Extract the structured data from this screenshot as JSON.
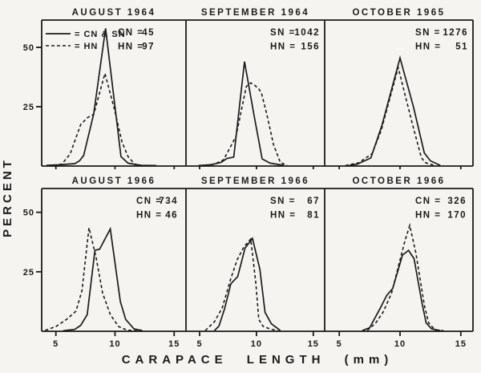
{
  "figure": {
    "background": "#f5f4f1",
    "ink": "#1b1b1b"
  },
  "chart_data": {
    "type": "line",
    "title": "",
    "xlabel": "CARAPACE LENGTH (mm)",
    "ylabel": "PERCENT",
    "xticks": [
      5,
      10,
      15
    ],
    "yticks": [
      25,
      50
    ],
    "xlim": [
      3.8,
      16
    ],
    "ylim": [
      0,
      61.5
    ],
    "grid": false,
    "legend_position": "top-left of first panel",
    "legend": [
      {
        "style": "solid",
        "label": "= CN & SN"
      },
      {
        "style": "dashed",
        "label": "= HN"
      }
    ],
    "panels": [
      {
        "title": "AUGUST 1964",
        "stats": [
          {
            "label": "CN",
            "value": "45"
          },
          {
            "label": "HN",
            "value": "97"
          }
        ],
        "series": [
          {
            "name": "CN",
            "style": "solid",
            "points": [
              [
                4.2,
                0.3
              ],
              [
                5.2,
                0.5
              ],
              [
                6.6,
                1.0
              ],
              [
                7.0,
                2.2
              ],
              [
                7.35,
                4.5
              ],
              [
                8.2,
                22
              ],
              [
                9.2,
                58
              ],
              [
                10.5,
                4
              ],
              [
                11.1,
                1.2
              ],
              [
                12.2,
                0.3
              ],
              [
                13.5,
                0.2
              ]
            ]
          },
          {
            "name": "HN",
            "style": "dashed",
            "points": [
              [
                4.8,
                0.2
              ],
              [
                5.5,
                0.8
              ],
              [
                6.2,
                5
              ],
              [
                7.1,
                17.5
              ],
              [
                7.65,
                20.3
              ],
              [
                8.2,
                21.8
              ],
              [
                9.15,
                39
              ],
              [
                9.95,
                24
              ],
              [
                10.6,
                10
              ],
              [
                11.1,
                4
              ],
              [
                11.7,
                0.6
              ],
              [
                12.4,
                0.2
              ]
            ]
          }
        ]
      },
      {
        "title": "SEPTEMBER 1964",
        "stats": [
          {
            "label": "SN",
            "value": "1042"
          },
          {
            "label": "HN",
            "value": "156"
          }
        ],
        "series": [
          {
            "name": "SN",
            "style": "solid",
            "points": [
              [
                4.9,
                0.2
              ],
              [
                6.1,
                0.6
              ],
              [
                6.9,
                1.6
              ],
              [
                7.4,
                3.2
              ],
              [
                8.0,
                3.8
              ],
              [
                8.95,
                44
              ],
              [
                9.8,
                21
              ],
              [
                10.5,
                3
              ],
              [
                11.2,
                1.2
              ],
              [
                12.4,
                0.3
              ]
            ]
          },
          {
            "name": "HN",
            "style": "dashed",
            "points": [
              [
                5.5,
                0.2
              ],
              [
                6.4,
                1.0
              ],
              [
                7.1,
                2.6
              ],
              [
                8.2,
                12.5
              ],
              [
                9.1,
                33.5
              ],
              [
                9.5,
                35
              ],
              [
                9.85,
                34
              ],
              [
                10.2,
                32.5
              ],
              [
                10.45,
                30.5
              ],
              [
                10.9,
                22
              ],
              [
                11.5,
                9
              ],
              [
                12.1,
                1.5
              ],
              [
                12.7,
                0.3
              ]
            ]
          }
        ]
      },
      {
        "title": "OCTOBER 1965",
        "stats": [
          {
            "label": "SN",
            "value": "1276"
          },
          {
            "label": "HN",
            "value": "51"
          }
        ],
        "series": [
          {
            "name": "SN",
            "style": "solid",
            "points": [
              [
                5.8,
                0.2
              ],
              [
                6.5,
                0.8
              ],
              [
                7.6,
                3.4
              ],
              [
                8.5,
                17
              ],
              [
                10.0,
                45.5
              ],
              [
                11.1,
                25
              ],
              [
                12.0,
                5.5
              ],
              [
                12.5,
                2.2
              ],
              [
                13.3,
                0.3
              ]
            ]
          },
          {
            "name": "HN",
            "style": "dashed",
            "points": [
              [
                5.5,
                0.2
              ],
              [
                6.6,
                1.4
              ],
              [
                7.7,
                5.2
              ],
              [
                8.45,
                15
              ],
              [
                9.85,
                41.5
              ],
              [
                11.0,
                18
              ],
              [
                11.75,
                3.5
              ],
              [
                12.1,
                1.4
              ],
              [
                12.8,
                0.3
              ]
            ]
          }
        ]
      },
      {
        "title": "AUGUST 1966",
        "stats": [
          {
            "label": "CN",
            "value": "734"
          },
          {
            "label": "HN",
            "value": "46"
          }
        ],
        "series": [
          {
            "name": "CN",
            "style": "solid",
            "points": [
              [
                5.6,
                0.2
              ],
              [
                6.6,
                0.8
              ],
              [
                7.1,
                2.5
              ],
              [
                7.65,
                7
              ],
              [
                8.3,
                34
              ],
              [
                8.7,
                34.5
              ],
              [
                9.6,
                43
              ],
              [
                10.45,
                12.5
              ],
              [
                10.9,
                5
              ],
              [
                11.6,
                1
              ],
              [
                12.3,
                0.3
              ]
            ]
          },
          {
            "name": "HN",
            "style": "dashed",
            "points": [
              [
                4.1,
                0.4
              ],
              [
                5.0,
                2
              ],
              [
                5.9,
                5
              ],
              [
                6.7,
                8.5
              ],
              [
                7.2,
                17
              ],
              [
                7.8,
                43.5
              ],
              [
                8.4,
                31
              ],
              [
                8.95,
                16
              ],
              [
                9.6,
                7
              ],
              [
                10.3,
                2
              ],
              [
                11.0,
                0.5
              ],
              [
                11.9,
                0.2
              ]
            ]
          }
        ]
      },
      {
        "title": "SEPTEMBER 1966",
        "stats": [
          {
            "label": "SN",
            "value": "67"
          },
          {
            "label": "HN",
            "value": "81"
          }
        ],
        "series": [
          {
            "name": "SN",
            "style": "solid",
            "points": [
              [
                6.3,
                0.3
              ],
              [
                6.7,
                2.2
              ],
              [
                7.2,
                9.5
              ],
              [
                7.75,
                20
              ],
              [
                8.35,
                23
              ],
              [
                9.0,
                35
              ],
              [
                9.65,
                39
              ],
              [
                10.3,
                26
              ],
              [
                10.75,
                8
              ],
              [
                11.3,
                3.2
              ],
              [
                12.1,
                0.3
              ]
            ]
          },
          {
            "name": "HN",
            "style": "dashed",
            "points": [
              [
                5.5,
                0.3
              ],
              [
                6.3,
                4
              ],
              [
                7.0,
                10
              ],
              [
                7.7,
                21.5
              ],
              [
                8.3,
                30
              ],
              [
                8.9,
                35.5
              ],
              [
                9.5,
                38.8
              ],
              [
                9.95,
                20
              ],
              [
                10.2,
                5
              ],
              [
                10.6,
                2
              ],
              [
                11.2,
                1
              ],
              [
                11.9,
                0.2
              ]
            ]
          }
        ]
      },
      {
        "title": "OCTOBER 1966",
        "stats": [
          {
            "label": "CN",
            "value": "326"
          },
          {
            "label": "HN",
            "value": "170"
          }
        ],
        "series": [
          {
            "name": "CN",
            "style": "solid",
            "points": [
              [
                6.9,
                0.3
              ],
              [
                7.5,
                1.5
              ],
              [
                8.4,
                10
              ],
              [
                8.9,
                15
              ],
              [
                9.4,
                18
              ],
              [
                10.2,
                32
              ],
              [
                10.7,
                34
              ],
              [
                11.15,
                30.5
              ],
              [
                11.8,
                12
              ],
              [
                12.15,
                3.5
              ],
              [
                12.6,
                1
              ],
              [
                13.3,
                0.3
              ]
            ]
          },
          {
            "name": "HN",
            "style": "dashed",
            "points": [
              [
                7.3,
                0.3
              ],
              [
                8.0,
                3.5
              ],
              [
                8.6,
                8
              ],
              [
                9.3,
                16
              ],
              [
                9.9,
                28
              ],
              [
                10.4,
                38
              ],
              [
                10.8,
                44.5
              ],
              [
                11.3,
                33
              ],
              [
                11.65,
                22
              ],
              [
                12.0,
                11
              ],
              [
                12.35,
                3.5
              ],
              [
                12.9,
                0.5
              ],
              [
                13.6,
                0.2
              ]
            ]
          }
        ]
      }
    ]
  }
}
